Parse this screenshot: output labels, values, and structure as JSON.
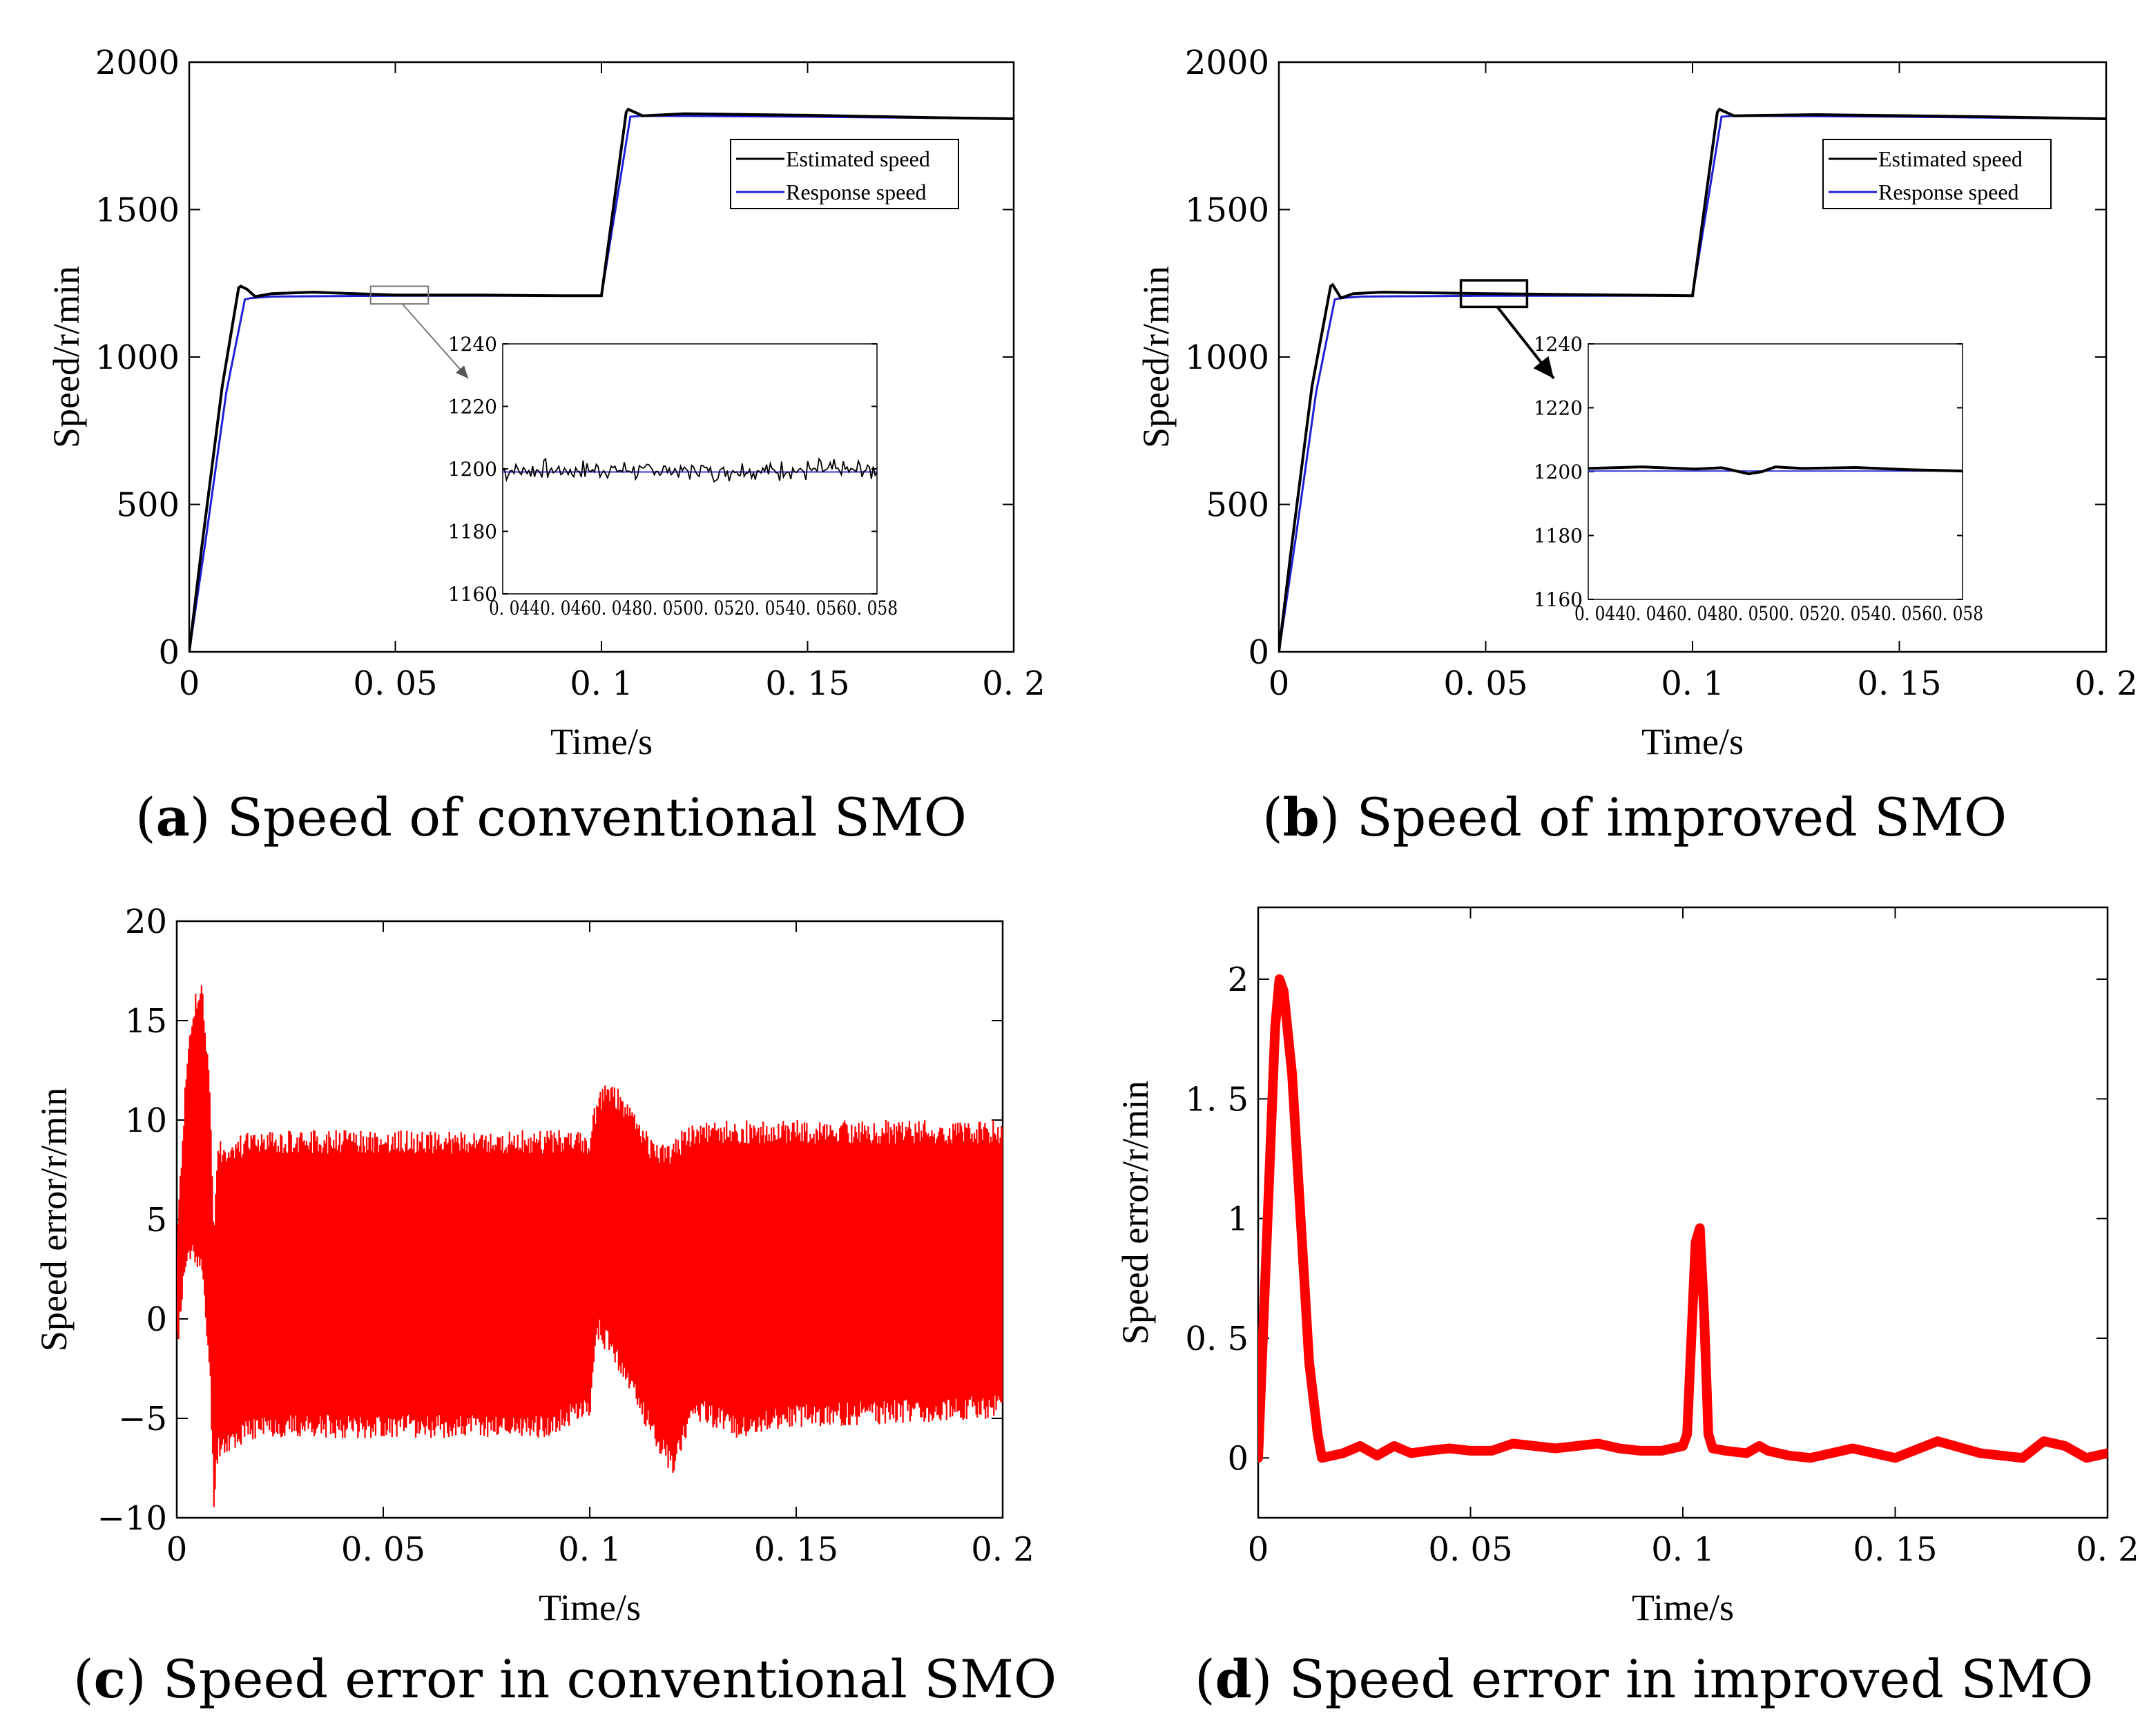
{
  "panels": [
    {
      "id": "a",
      "caption_letter": "a",
      "caption_text": "Speed of conventional SMO",
      "chart_data": {
        "type": "line",
        "xlabel": "Time/s",
        "ylabel": "Speed/r/min",
        "xlim": [
          0,
          0.2
        ],
        "ylim": [
          0,
          2000
        ],
        "xticks": [
          "0",
          "0. 05",
          "0. 1",
          "0. 15",
          "0. 2"
        ],
        "yticks": [
          "0",
          "500",
          "1000",
          "1500",
          "2000"
        ],
        "legend": [
          "Estimated speed",
          "Response speed"
        ],
        "legend_position": "top-right",
        "series": [
          {
            "name": "Estimated speed",
            "color": "#000000",
            "x": [
              0,
              0.003,
              0.008,
              0.012,
              0.0125,
              0.014,
              0.016,
              0.02,
              0.03,
              0.05,
              0.07,
              0.09,
              0.1,
              0.106,
              0.1065,
              0.11,
              0.12,
              0.15,
              0.18,
              0.2
            ],
            "y": [
              0,
              350,
              900,
              1235,
              1240,
              1230,
              1205,
              1215,
              1220,
              1210,
              1210,
              1208,
              1208,
              1830,
              1840,
              1818,
              1825,
              1820,
              1812,
              1808
            ]
          },
          {
            "name": "Response speed",
            "color": "#1f1fd6",
            "x": [
              0,
              0.004,
              0.009,
              0.0135,
              0.015,
              0.02,
              0.05,
              0.1,
              0.107,
              0.11,
              0.15,
              0.2
            ],
            "y": [
              0,
              380,
              880,
              1195,
              1200,
              1205,
              1208,
              1208,
              1815,
              1818,
              1815,
              1808
            ]
          }
        ],
        "zoom_box": {
          "x": [
            0.044,
            0.058
          ],
          "y": [
            1180,
            1240
          ]
        },
        "inset": {
          "xlim": [
            0.044,
            0.058
          ],
          "ylim": [
            1160,
            1240
          ],
          "xtick_text": "0. 0440. 0460. 0480. 0500. 0520. 0540. 0560. 058",
          "yticks": [
            "1160",
            "1180",
            "1200",
            "1220",
            "1240"
          ],
          "estimated_amplitude": 4,
          "response_level": 1199
        }
      }
    },
    {
      "id": "b",
      "caption_letter": "b",
      "caption_text": "Speed of improved SMO",
      "chart_data": {
        "type": "line",
        "xlabel": "Time/s",
        "ylabel": "Speed/r/min",
        "xlim": [
          0,
          0.2
        ],
        "ylim": [
          0,
          2000
        ],
        "xticks": [
          "0",
          "0. 05",
          "0. 1",
          "0. 15",
          "0. 2"
        ],
        "yticks": [
          "0",
          "500",
          "1000",
          "1500",
          "2000"
        ],
        "legend": [
          "Estimated speed",
          "Response speed"
        ],
        "legend_position": "top-right",
        "series": [
          {
            "name": "Estimated speed",
            "color": "#000000",
            "x": [
              0,
              0.003,
              0.008,
              0.0125,
              0.013,
              0.015,
              0.018,
              0.025,
              0.05,
              0.07,
              0.1,
              0.106,
              0.1065,
              0.11,
              0.13,
              0.17,
              0.2
            ],
            "y": [
              0,
              350,
              900,
              1240,
              1245,
              1200,
              1215,
              1220,
              1215,
              1212,
              1208,
              1830,
              1840,
              1818,
              1822,
              1815,
              1808
            ]
          },
          {
            "name": "Response speed",
            "color": "#1f1fd6",
            "x": [
              0,
              0.004,
              0.009,
              0.0135,
              0.015,
              0.02,
              0.05,
              0.1,
              0.107,
              0.11,
              0.15,
              0.2
            ],
            "y": [
              0,
              380,
              880,
              1195,
              1200,
              1205,
              1208,
              1208,
              1815,
              1818,
              1815,
              1808
            ]
          }
        ],
        "zoom_box": {
          "x": [
            0.044,
            0.06
          ],
          "y": [
            1170,
            1260
          ]
        },
        "inset": {
          "xlim": [
            0.044,
            0.058
          ],
          "ylim": [
            1160,
            1240
          ],
          "xtick_text": "0. 0440. 0460. 0480. 0500. 0520. 0540. 0560. 058",
          "yticks": [
            "1160",
            "1180",
            "1200",
            "1220",
            "1240"
          ],
          "estimated": {
            "x": [
              0.044,
              0.046,
              0.048,
              0.049,
              0.05,
              0.0505,
              0.051,
              0.052,
              0.054,
              0.056,
              0.058
            ],
            "y": [
              1201,
              1201.5,
              1200.8,
              1201.2,
              1199.3,
              1200,
              1201.5,
              1201,
              1201.3,
              1200.6,
              1200.2
            ]
          },
          "response_level": 1200.2
        }
      }
    },
    {
      "id": "c",
      "caption_letter": "c",
      "caption_text": "Speed error in conventional SMO",
      "chart_data": {
        "type": "line",
        "xlabel": "Time/s",
        "ylabel": "Speed error/r/min",
        "xlim": [
          0,
          0.2
        ],
        "ylim": [
          -10,
          20
        ],
        "xticks": [
          "0",
          "0. 05",
          "0. 1",
          "0. 15",
          "0. 2"
        ],
        "yticks": [
          "−10",
          "−5",
          "0",
          "5",
          "10",
          "15",
          "20"
        ],
        "series": [
          {
            "name": "Speed error",
            "color": "#ff0000",
            "envelope": {
              "x": [
                0,
                0.002,
                0.004,
                0.006,
                0.008,
                0.009,
                0.01,
                0.02,
                0.05,
                0.09,
                0.1,
                0.102,
                0.105,
                0.11,
                0.115,
                0.12,
                0.125,
                0.135,
                0.15,
                0.2
              ],
              "upper": [
                4,
                12,
                16,
                17.5,
                12,
                5,
                9,
                9.5,
                9.5,
                9.5,
                9.5,
                11.5,
                12,
                11,
                9,
                9,
                10,
                10,
                10,
                10
              ],
              "lower": [
                -2,
                2,
                3,
                2,
                -3,
                -9.5,
                -7,
                -6,
                -6,
                -6,
                -5,
                -1,
                -2,
                -4,
                -6,
                -8,
                -5,
                -6,
                -5.5,
                -5
              ]
            }
          }
        ]
      }
    },
    {
      "id": "d",
      "caption_letter": "d",
      "caption_text": "Speed error in improved SMO",
      "chart_data": {
        "type": "line",
        "xlabel": "Time/s",
        "ylabel": "Speed error/r/min",
        "xlim": [
          0,
          0.2
        ],
        "ylim": [
          -0.25,
          2.3
        ],
        "xticks": [
          "0",
          "0. 05",
          "0. 1",
          "0. 15",
          "0. 2"
        ],
        "yticks": [
          "0",
          "0. 5",
          "1",
          "1. 5",
          "2"
        ],
        "series": [
          {
            "name": "Speed error",
            "color": "#ff0000",
            "x": [
              0,
              0.002,
              0.004,
              0.005,
              0.006,
              0.008,
              0.01,
              0.012,
              0.014,
              0.015,
              0.02,
              0.024,
              0.028,
              0.032,
              0.036,
              0.04,
              0.045,
              0.05,
              0.055,
              0.06,
              0.065,
              0.07,
              0.075,
              0.08,
              0.085,
              0.09,
              0.095,
              0.1,
              0.101,
              0.102,
              0.103,
              0.104,
              0.105,
              0.106,
              0.107,
              0.11,
              0.115,
              0.118,
              0.12,
              0.125,
              0.13,
              0.14,
              0.15,
              0.16,
              0.17,
              0.18,
              0.185,
              0.19,
              0.195,
              0.2
            ],
            "y": [
              0,
              0.9,
              1.8,
              2.0,
              1.95,
              1.6,
              1.0,
              0.4,
              0.1,
              0.0,
              0.02,
              0.05,
              0.01,
              0.05,
              0.02,
              0.03,
              0.04,
              0.03,
              0.03,
              0.06,
              0.05,
              0.04,
              0.05,
              0.06,
              0.04,
              0.03,
              0.03,
              0.05,
              0.1,
              0.5,
              0.9,
              0.96,
              0.6,
              0.1,
              0.04,
              0.03,
              0.02,
              0.05,
              0.03,
              0.01,
              0.0,
              0.04,
              0.0,
              0.07,
              0.02,
              0.0,
              0.07,
              0.05,
              0.0,
              0.02
            ]
          }
        ]
      }
    }
  ]
}
